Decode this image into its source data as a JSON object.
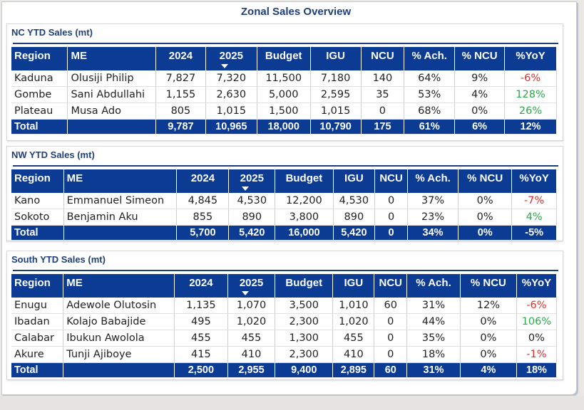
{
  "page": {
    "title": "Zonal Sales Overview"
  },
  "columns": [
    "Region",
    "ME",
    "2024",
    "2025",
    "Budget",
    "IGU",
    "NCU",
    "% Ach.",
    "% NCU",
    "%YoY"
  ],
  "sections": [
    {
      "title": "NC YTD Sales (mt)",
      "rows": [
        [
          "Kaduna",
          "Olusiji Philip",
          "7,827",
          "7,320",
          "11,500",
          "7,180",
          "140",
          "64%",
          "9%",
          "-6%"
        ],
        [
          "Gombe",
          "Sani Abdullahi",
          "1,155",
          "2,630",
          "5,000",
          "2,595",
          "35",
          "53%",
          "4%",
          "128%"
        ],
        [
          "Plateau",
          "Musa Ado",
          "805",
          "1,015",
          "1,500",
          "1,015",
          "0",
          "68%",
          "0%",
          "26%"
        ]
      ],
      "total": [
        "Total",
        "",
        "9,787",
        "10,965",
        "18,000",
        "10,790",
        "175",
        "61%",
        "6%",
        "12%"
      ]
    },
    {
      "title": "NW YTD Sales (mt)",
      "rows": [
        [
          "Kano",
          "Emmanuel Simeon",
          "4,845",
          "4,530",
          "12,200",
          "4,530",
          "0",
          "37%",
          "0%",
          "-7%"
        ],
        [
          "Sokoto",
          "Benjamin Aku",
          "855",
          "890",
          "3,800",
          "890",
          "0",
          "23%",
          "0%",
          "4%"
        ]
      ],
      "total": [
        "Total",
        "",
        "5,700",
        "5,420",
        "16,000",
        "5,420",
        "0",
        "34%",
        "0%",
        "-5%"
      ]
    },
    {
      "title": "South YTD Sales (mt)",
      "rows": [
        [
          "Enugu",
          "Adewole Olutosin",
          "1,135",
          "1,070",
          "3,500",
          "1,010",
          "60",
          "31%",
          "12%",
          "-6%"
        ],
        [
          "Ibadan",
          "Kolajo Babajide",
          "495",
          "1,020",
          "2,300",
          "1,020",
          "0",
          "44%",
          "0%",
          "106%"
        ],
        [
          "Calabar",
          "Ibukun Awolola",
          "455",
          "455",
          "1,300",
          "455",
          "0",
          "35%",
          "0%",
          "0%"
        ],
        [
          "Akure",
          "Tunji Ajiboye",
          "415",
          "410",
          "2,300",
          "410",
          "0",
          "18%",
          "0%",
          "-1%"
        ]
      ],
      "total": [
        "Total",
        "",
        "2,500",
        "2,955",
        "9,400",
        "2,895",
        "60",
        "31%",
        "4%",
        "18%"
      ]
    }
  ],
  "colors": {
    "header": "#0b3b93",
    "negative": "#d9302a",
    "positive": "#2aa84a",
    "title": "#1f3f78"
  },
  "sort": {
    "column": "2025",
    "direction": "descending",
    "icon": "sort-desc-caret"
  }
}
